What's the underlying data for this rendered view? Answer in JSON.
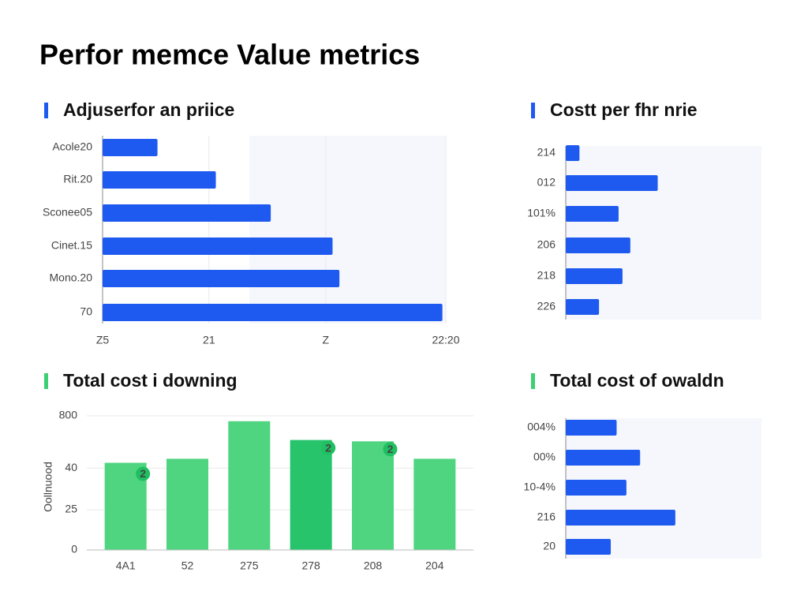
{
  "title": "Perfor memce Value metrics",
  "chart_data": [
    {
      "type": "hbar",
      "title": "Adjuserfor an priice",
      "accent": "#1f5af0",
      "color": "#1f5af0",
      "categories": [
        "Acole20",
        "Rit.20",
        "Sconee05",
        "Cinet.15",
        "Mono.20",
        "70"
      ],
      "values": [
        16,
        33,
        49,
        67,
        69,
        99
      ],
      "xlim": [
        0,
        100
      ],
      "xticks": [
        {
          "value": 0,
          "label": "Z5"
        },
        {
          "value": 31,
          "label": "21"
        },
        {
          "value": 65,
          "label": "Z"
        },
        {
          "value": 100,
          "label": "22:20"
        }
      ],
      "grid": true
    },
    {
      "type": "hbar",
      "title": "Costt per fhr nrie",
      "accent": "#1f5af0",
      "color": "#1f5af0",
      "categories": [
        "214",
        "012",
        "101%",
        "206",
        "218",
        "226"
      ],
      "values": [
        7,
        47,
        27,
        33,
        29,
        17
      ],
      "xlim": [
        0,
        100
      ]
    },
    {
      "type": "bar",
      "title": "Total cost i downing",
      "accent": "#3ccf73",
      "y_label": "Oollnuood",
      "categories": [
        "4A1",
        "52",
        "275",
        "278",
        "208",
        "204"
      ],
      "values": [
        65,
        68,
        96,
        82,
        81,
        68
      ],
      "colors": [
        "#4fd47f",
        "#4fd47f",
        "#4fd47f",
        "#27c46b",
        "#4fd47f",
        "#4fd47f"
      ],
      "badges": [
        "2",
        null,
        null,
        "2",
        "2",
        null
      ],
      "ylim": [
        0,
        100
      ],
      "yticks": [
        0,
        {
          "value": 30,
          "label": "25"
        },
        {
          "value": 61,
          "label": "40"
        },
        {
          "value": 100,
          "label": "800"
        }
      ],
      "grid": true
    },
    {
      "type": "hbar",
      "title": "Total cost of owaldn",
      "accent": "#3ccf73",
      "color": "#1f5af0",
      "categories": [
        "004%",
        "00%",
        "10-4%",
        "216",
        "20"
      ],
      "values": [
        26,
        38,
        31,
        56,
        23
      ],
      "xlim": [
        0,
        100
      ]
    }
  ]
}
